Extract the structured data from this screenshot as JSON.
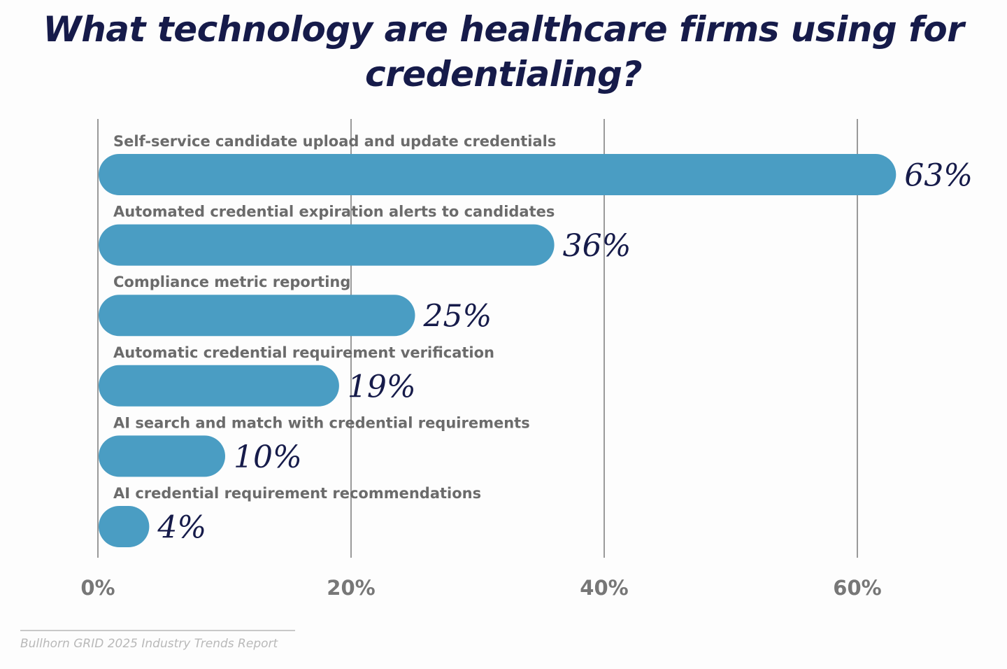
{
  "chart_data": {
    "type": "bar",
    "orientation": "horizontal",
    "title": "What technology are healthcare firms using for credentialing?",
    "categories": [
      "Self-service candidate upload and update credentials",
      "Automated credential expiration alerts to candidates",
      "Compliance metric reporting",
      "Automatic credential requirement verification",
      "AI search and match with credential requirements",
      "AI credential requirement recommendations"
    ],
    "values": [
      63,
      36,
      25,
      19,
      10,
      4
    ],
    "value_labels": [
      "63%",
      "36%",
      "25%",
      "19%",
      "10%",
      "4%"
    ],
    "xlim": [
      0,
      60
    ],
    "xticks": [
      0,
      20,
      40,
      60
    ],
    "xtick_labels": [
      "0%",
      "20%",
      "40%",
      "60%"
    ],
    "grid": "vertical",
    "legend": "none",
    "bar_color": "#4a9dc3",
    "title_color": "#161b4a",
    "value_color": "#161b4a",
    "label_color": "#6b6b6b",
    "tick_color": "#777777",
    "gridline_color": "#9a9a9a"
  },
  "source": "Bullhorn GRID 2025 Industry Trends Report"
}
